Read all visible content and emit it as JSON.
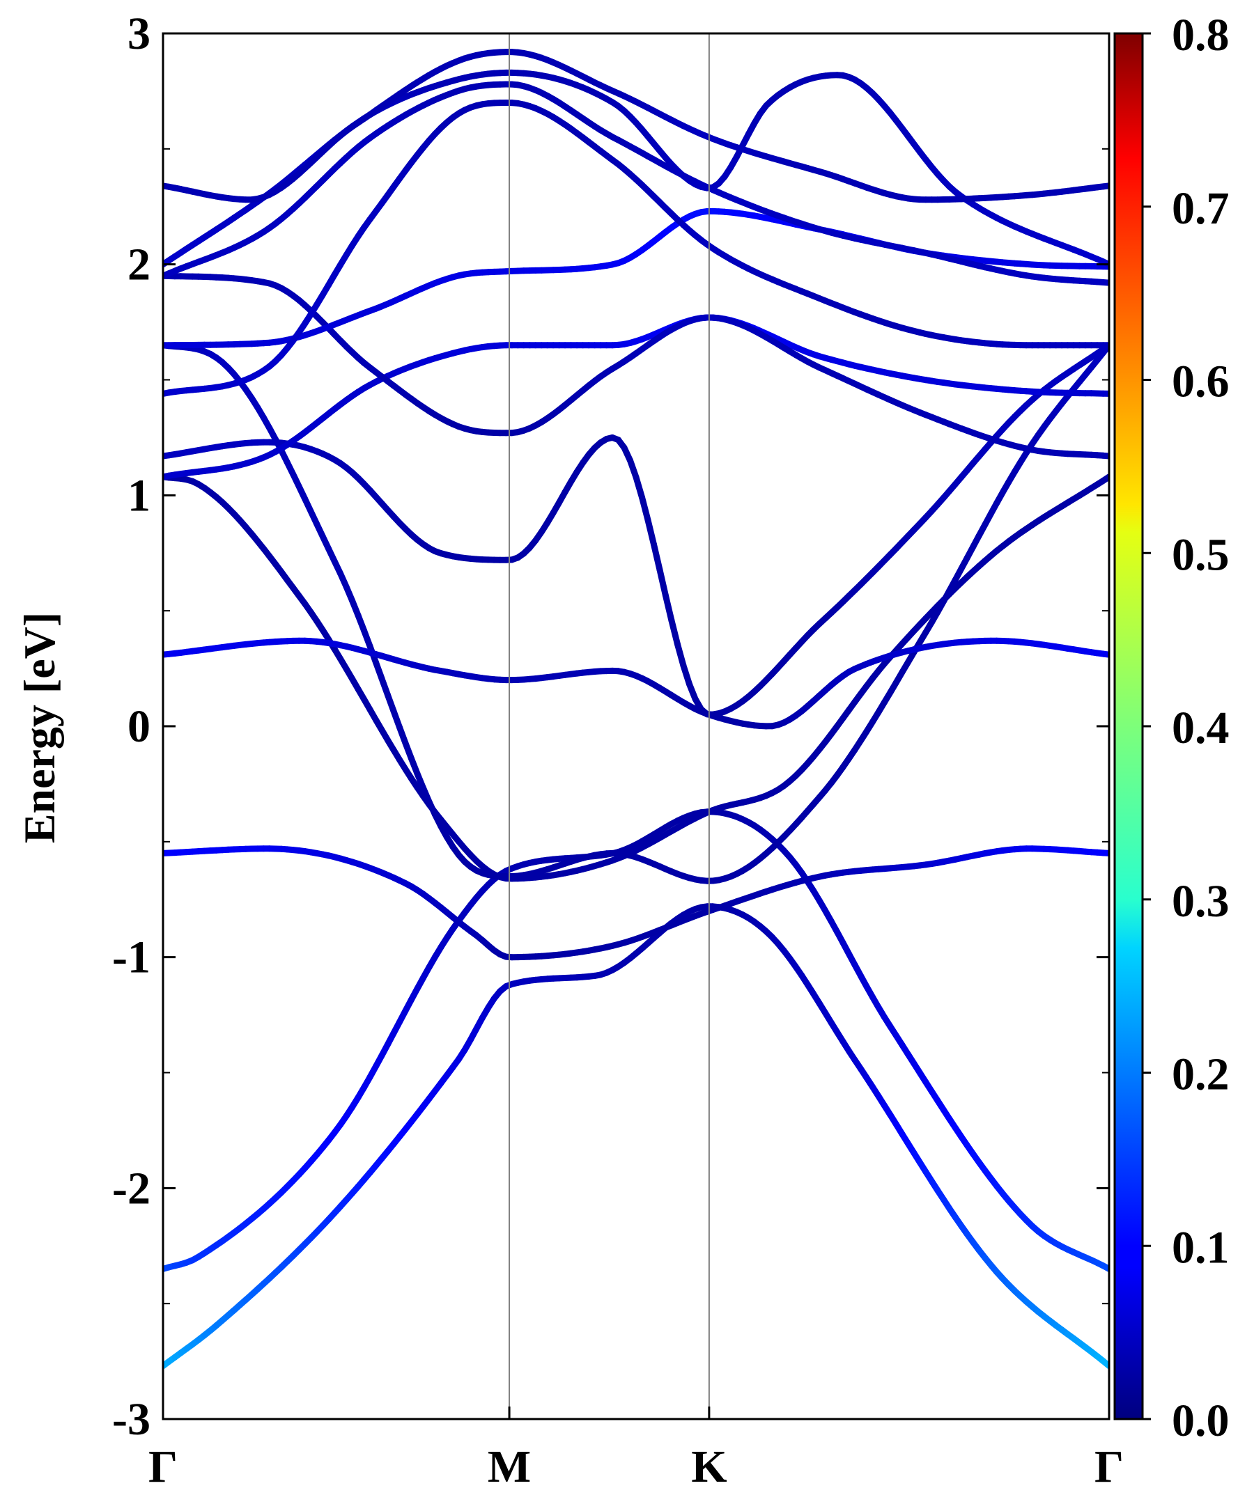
{
  "chart_data": {
    "type": "line",
    "title": "",
    "ylabel": "Energy [eV]",
    "xlabel": "",
    "ylim": [
      -3,
      3
    ],
    "xlim": [
      0,
      2.732
    ],
    "grid": false,
    "legend": "none",
    "y_ticks": [
      {
        "value": -3,
        "label": "-3"
      },
      {
        "value": -2,
        "label": "-2"
      },
      {
        "value": -1,
        "label": "-1"
      },
      {
        "value": 0,
        "label": "0"
      },
      {
        "value": 1,
        "label": "1"
      },
      {
        "value": 2,
        "label": "2"
      },
      {
        "value": 3,
        "label": "3"
      }
    ],
    "y_minor_ticks": [
      -2.5,
      -1.5,
      -0.5,
      0.5,
      1.5,
      2.5
    ],
    "high_symmetry_points": [
      {
        "label": "Γ",
        "x": 0.0
      },
      {
        "label": "M",
        "x": 1.0
      },
      {
        "label": "K",
        "x": 1.577
      },
      {
        "label": "Γ",
        "x": 2.732
      }
    ],
    "colorbar": {
      "min": 0.0,
      "max": 0.8,
      "colormap": "jet",
      "ticks": [
        "0.0",
        "0.1",
        "0.2",
        "0.3",
        "0.4",
        "0.5",
        "0.6",
        "0.7",
        "0.8"
      ]
    },
    "series": [
      {
        "x": [
          0,
          0.15,
          0.5,
          0.85,
          1.0,
          1.25,
          1.577,
          1.75,
          2.0,
          2.4,
          2.732
        ],
        "y": [
          -2.77,
          -2.6,
          -2.1,
          -1.45,
          -1.12,
          -1.08,
          -0.78,
          -0.9,
          -1.45,
          -2.35,
          -2.77
        ],
        "weight": [
          0.24,
          0.2,
          0.13,
          0.08,
          0.05,
          0.04,
          0.03,
          0.04,
          0.06,
          0.17,
          0.24
        ]
      },
      {
        "x": [
          0,
          0.1,
          0.5,
          0.85,
          1.0,
          1.3,
          1.577,
          1.8,
          2.1,
          2.5,
          2.732
        ],
        "y": [
          -2.35,
          -2.3,
          -1.75,
          -0.85,
          -0.62,
          -0.55,
          -0.37,
          -0.55,
          -1.3,
          -2.15,
          -2.35
        ],
        "weight": [
          0.16,
          0.14,
          0.1,
          0.05,
          0.04,
          0.03,
          0.03,
          0.04,
          0.07,
          0.13,
          0.16
        ]
      },
      {
        "x": [
          0,
          0.3,
          0.7,
          0.9,
          1.0,
          1.3,
          1.577,
          1.9,
          2.2,
          2.5,
          2.732
        ],
        "y": [
          -0.55,
          -0.53,
          -0.68,
          -0.9,
          -1.0,
          -0.95,
          -0.8,
          -0.65,
          -0.6,
          -0.53,
          -0.55
        ],
        "weight": [
          0.1,
          0.09,
          0.06,
          0.04,
          0.03,
          0.03,
          0.03,
          0.04,
          0.06,
          0.09,
          0.1
        ]
      },
      {
        "x": [
          0,
          0.1,
          0.4,
          0.8,
          1.0,
          1.3,
          1.577,
          1.8,
          2.1,
          2.4,
          2.732
        ],
        "y": [
          1.08,
          1.05,
          0.55,
          -0.4,
          -0.66,
          -0.58,
          -0.37,
          -0.25,
          0.3,
          0.75,
          1.08
        ],
        "weight": [
          0.03,
          0.03,
          0.03,
          0.03,
          0.03,
          0.03,
          0.03,
          0.03,
          0.03,
          0.03,
          0.03
        ]
      },
      {
        "x": [
          0,
          0.15,
          0.5,
          0.85,
          1.0,
          1.3,
          1.577,
          1.9,
          2.2,
          2.5,
          2.732
        ],
        "y": [
          1.65,
          1.6,
          0.7,
          -0.55,
          -0.65,
          -0.55,
          -0.67,
          -0.3,
          0.4,
          1.2,
          1.65
        ],
        "weight": [
          0.05,
          0.05,
          0.04,
          0.03,
          0.03,
          0.03,
          0.03,
          0.03,
          0.03,
          0.04,
          0.05
        ]
      },
      {
        "x": [
          0,
          0.4,
          0.8,
          1.0,
          1.3,
          1.577,
          1.75,
          2.0,
          2.4,
          2.732
        ],
        "y": [
          0.31,
          0.37,
          0.24,
          0.2,
          0.24,
          0.05,
          0.0,
          0.25,
          0.37,
          0.31
        ],
        "weight": [
          0.09,
          0.08,
          0.05,
          0.04,
          0.04,
          0.03,
          0.03,
          0.05,
          0.08,
          0.09
        ]
      },
      {
        "x": [
          0,
          0.3,
          0.5,
          0.8,
          1.0,
          1.3,
          1.577,
          1.9,
          2.2,
          2.5,
          2.732
        ],
        "y": [
          1.17,
          1.23,
          1.15,
          0.75,
          0.72,
          1.25,
          0.05,
          0.45,
          0.9,
          1.4,
          1.65
        ],
        "weight": [
          0.05,
          0.05,
          0.04,
          0.03,
          0.03,
          0.03,
          0.03,
          0.03,
          0.04,
          0.05,
          0.05
        ]
      },
      {
        "x": [
          0,
          0.3,
          0.6,
          0.85,
          1.0,
          1.3,
          1.577,
          1.9,
          2.2,
          2.5,
          2.732
        ],
        "y": [
          1.08,
          1.17,
          1.48,
          1.62,
          1.65,
          1.65,
          1.77,
          1.6,
          1.5,
          1.45,
          1.44
        ],
        "weight": [
          0.06,
          0.06,
          0.06,
          0.07,
          0.07,
          0.08,
          0.1,
          0.08,
          0.07,
          0.07,
          0.06
        ]
      },
      {
        "x": [
          0,
          0.3,
          0.6,
          0.85,
          1.0,
          1.3,
          1.577,
          1.9,
          2.2,
          2.5,
          2.732
        ],
        "y": [
          1.95,
          1.92,
          1.55,
          1.3,
          1.27,
          1.55,
          1.77,
          1.55,
          1.35,
          1.2,
          1.17
        ],
        "weight": [
          0.04,
          0.04,
          0.04,
          0.03,
          0.03,
          0.04,
          0.05,
          0.04,
          0.04,
          0.04,
          0.04
        ]
      },
      {
        "x": [
          0,
          0.3,
          0.6,
          0.85,
          1.0,
          1.3,
          1.577,
          1.9,
          2.2,
          2.5,
          2.732
        ],
        "y": [
          1.65,
          1.66,
          1.8,
          1.95,
          1.97,
          2.0,
          2.23,
          2.15,
          2.05,
          2.0,
          1.99
        ],
        "weight": [
          0.07,
          0.07,
          0.07,
          0.08,
          0.08,
          0.09,
          0.11,
          0.09,
          0.08,
          0.08,
          0.08
        ]
      },
      {
        "x": [
          0,
          0.3,
          0.6,
          0.85,
          1.0,
          1.3,
          1.577,
          1.9,
          2.2,
          2.5,
          2.732
        ],
        "y": [
          1.44,
          1.55,
          2.2,
          2.65,
          2.7,
          2.45,
          2.08,
          1.85,
          1.7,
          1.65,
          1.65
        ],
        "weight": [
          0.06,
          0.06,
          0.05,
          0.04,
          0.04,
          0.04,
          0.05,
          0.04,
          0.04,
          0.05,
          0.05
        ]
      },
      {
        "x": [
          0,
          0.3,
          0.6,
          0.85,
          1.0,
          1.3,
          1.577,
          1.9,
          2.2,
          2.5,
          2.732
        ],
        "y": [
          1.95,
          2.15,
          2.55,
          2.75,
          2.78,
          2.55,
          2.33,
          2.15,
          2.05,
          1.95,
          1.92
        ],
        "weight": [
          0.05,
          0.05,
          0.05,
          0.04,
          0.04,
          0.04,
          0.05,
          0.05,
          0.05,
          0.05,
          0.05
        ]
      },
      {
        "x": [
          0,
          0.3,
          0.6,
          0.85,
          1.0,
          1.3,
          1.577,
          1.75,
          1.95,
          2.3,
          2.732
        ],
        "y": [
          2.0,
          2.3,
          2.65,
          2.8,
          2.83,
          2.7,
          2.33,
          2.7,
          2.82,
          2.3,
          2.0
        ],
        "weight": [
          0.06,
          0.05,
          0.05,
          0.04,
          0.04,
          0.04,
          0.05,
          0.04,
          0.04,
          0.05,
          0.06
        ]
      },
      {
        "x": [
          0,
          0.25,
          0.55,
          0.85,
          1.0,
          1.3,
          1.577,
          1.9,
          2.2,
          2.5,
          2.732
        ],
        "y": [
          2.34,
          2.28,
          2.6,
          2.88,
          2.92,
          2.75,
          2.55,
          2.4,
          2.28,
          2.3,
          2.34
        ],
        "weight": [
          0.04,
          0.04,
          0.04,
          0.04,
          0.04,
          0.04,
          0.05,
          0.04,
          0.04,
          0.04,
          0.04
        ]
      }
    ]
  }
}
